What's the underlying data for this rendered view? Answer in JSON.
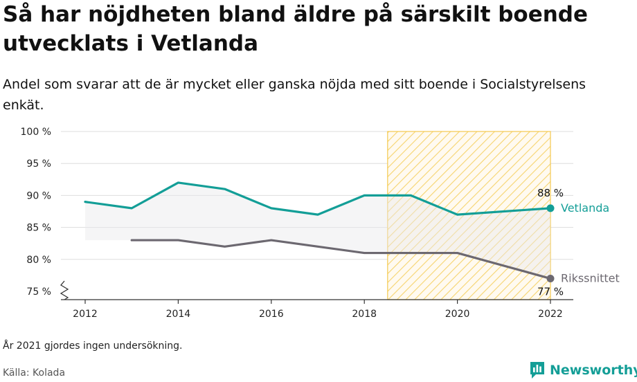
{
  "title": "Så har nöjdheten bland äldre på särskilt boende utvecklats i Vetlanda",
  "subtitle": "Andel som svarar att de är mycket eller ganska nöjda med sitt boende i Socialstyrelsens enkät.",
  "note": "År 2021 gjordes ingen undersökning.",
  "source": "Källa: Kolada",
  "brand": {
    "name": "Newsworthy",
    "icon": "newsworthy-logo-icon",
    "color": "#149e97"
  },
  "chart_data": {
    "type": "line",
    "ylim": [
      75,
      100
    ],
    "xlim": [
      2012,
      2022
    ],
    "yticks": [
      75,
      80,
      85,
      90,
      95,
      100
    ],
    "ytick_labels": [
      "75 %",
      "80 %",
      "85 %",
      "90 %",
      "95 %",
      "100 %"
    ],
    "xticks": [
      2012,
      2014,
      2016,
      2018,
      2020,
      2022
    ],
    "xtick_labels": [
      "2012",
      "2014",
      "2016",
      "2018",
      "2020",
      "2022"
    ],
    "grid": "horizontal",
    "axis_break": true,
    "highlight_range": [
      2018.5,
      2022
    ],
    "series": [
      {
        "name": "Vetlanda",
        "color": "#139e97",
        "x": [
          2012,
          2013,
          2014,
          2015,
          2016,
          2017,
          2018,
          2019,
          2020,
          2022
        ],
        "values": [
          89,
          88,
          92,
          91,
          88,
          87,
          90,
          90,
          87,
          88
        ],
        "end_label": "88 %"
      },
      {
        "name": "Rikssnittet",
        "color": "#6c6870",
        "x": [
          2013,
          2014,
          2015,
          2016,
          2017,
          2018,
          2019,
          2020,
          2022
        ],
        "values": [
          83,
          83,
          82,
          83,
          82,
          81,
          81,
          81,
          77
        ],
        "end_label": "77 %"
      }
    ]
  }
}
